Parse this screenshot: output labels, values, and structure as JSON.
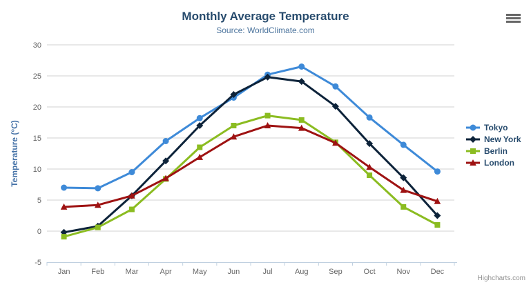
{
  "header": {
    "title": "Monthly Average Temperature",
    "subtitle": "Source: WorldClimate.com"
  },
  "credits": "Highcharts.com",
  "icons": {
    "context_menu": "hamburger-icon"
  },
  "colors": {
    "title": "#274b6d",
    "subtitle": "#4d759e",
    "axis_title": "#4572a7",
    "tick_label": "#666666",
    "grid": "#d0d0d0",
    "axis_line": "#c0d0e0",
    "credits": "#909090"
  },
  "chart_data": {
    "type": "line",
    "title": "Monthly Average Temperature",
    "subtitle": "Source: WorldClimate.com",
    "xlabel": "",
    "ylabel": "Temperature (°C)",
    "ylim": [
      -5,
      30
    ],
    "ytick_step": 5,
    "yticks": [
      -5,
      0,
      5,
      10,
      15,
      20,
      25,
      30
    ],
    "grid": true,
    "legend_position": "right",
    "categories": [
      "Jan",
      "Feb",
      "Mar",
      "Apr",
      "May",
      "Jun",
      "Jul",
      "Aug",
      "Sep",
      "Oct",
      "Nov",
      "Dec"
    ],
    "series": [
      {
        "name": "Tokyo",
        "color": "#3e8ad8",
        "marker": "circle",
        "values": [
          7.0,
          6.9,
          9.5,
          14.5,
          18.2,
          21.5,
          25.2,
          26.5,
          23.3,
          18.3,
          13.9,
          9.6
        ]
      },
      {
        "name": "New York",
        "color": "#0d233a",
        "marker": "diamond",
        "values": [
          -0.2,
          0.8,
          5.7,
          11.3,
          17.0,
          22.0,
          24.8,
          24.1,
          20.1,
          14.1,
          8.6,
          2.5
        ]
      },
      {
        "name": "Berlin",
        "color": "#8bbc21",
        "marker": "square",
        "values": [
          -0.9,
          0.6,
          3.5,
          8.4,
          13.5,
          17.0,
          18.6,
          17.9,
          14.3,
          9.0,
          3.9,
          1.0
        ]
      },
      {
        "name": "London",
        "color": "#9e1212",
        "marker": "triangle",
        "values": [
          3.9,
          4.2,
          5.7,
          8.5,
          11.9,
          15.2,
          17.0,
          16.6,
          14.2,
          10.3,
          6.6,
          4.8
        ]
      }
    ]
  }
}
